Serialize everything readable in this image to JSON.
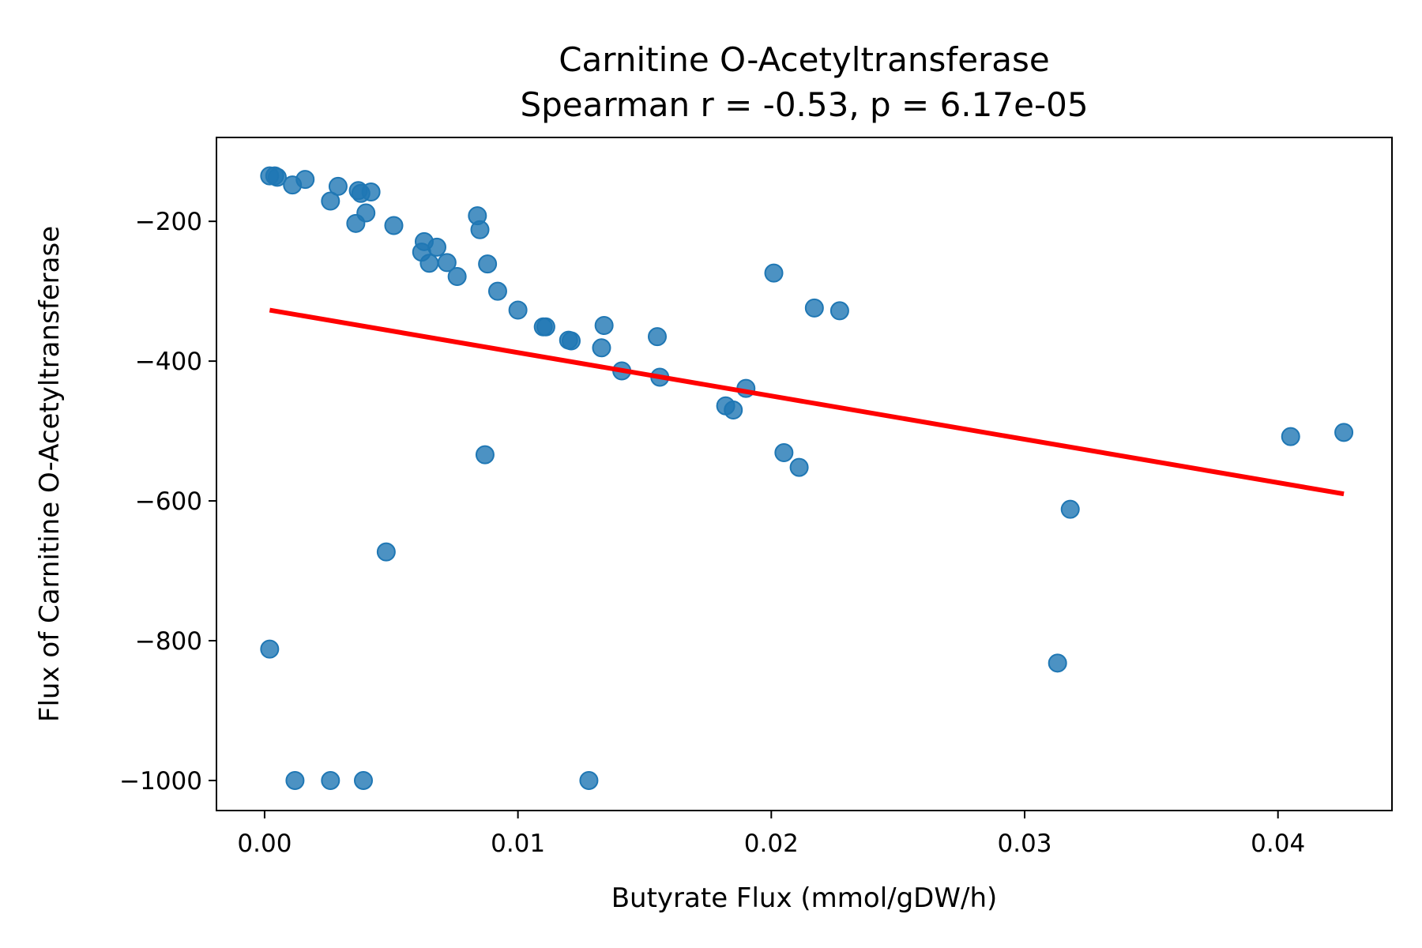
{
  "chart_data": {
    "type": "scatter",
    "title": "Carnitine O-Acetyltransferase",
    "subtitle": "Spearman r = -0.53, p = 6.17e-05",
    "xlabel": "Butyrate Flux (mmol/gDW/h)",
    "ylabel": "Flux of Carnitine O-Acetyltransferase",
    "xlim": [
      -0.0019,
      0.0445
    ],
    "ylim": [
      -1043,
      -80
    ],
    "xticks": [
      0.0,
      0.01,
      0.02,
      0.03,
      0.04
    ],
    "xtick_labels": [
      "0.00",
      "0.01",
      "0.02",
      "0.03",
      "0.04"
    ],
    "yticks": [
      -200,
      -400,
      -600,
      -800,
      -1000
    ],
    "ytick_labels": [
      "−200",
      "−400",
      "−600",
      "−800",
      "−1000"
    ],
    "grid": false,
    "colors": {
      "points": "#1f77b4",
      "fit_line": "#ff0000"
    },
    "points": [
      {
        "x": 0.0002,
        "y": -135
      },
      {
        "x": 0.0004,
        "y": -135
      },
      {
        "x": 0.0005,
        "y": -137
      },
      {
        "x": 0.0011,
        "y": -148
      },
      {
        "x": 0.0016,
        "y": -140
      },
      {
        "x": 0.0026,
        "y": -171
      },
      {
        "x": 0.0029,
        "y": -150
      },
      {
        "x": 0.0037,
        "y": -156
      },
      {
        "x": 0.0038,
        "y": -160
      },
      {
        "x": 0.0042,
        "y": -158
      },
      {
        "x": 0.0036,
        "y": -203
      },
      {
        "x": 0.004,
        "y": -188
      },
      {
        "x": 0.0051,
        "y": -206
      },
      {
        "x": 0.0063,
        "y": -229
      },
      {
        "x": 0.0062,
        "y": -244
      },
      {
        "x": 0.0065,
        "y": -260
      },
      {
        "x": 0.0068,
        "y": -237
      },
      {
        "x": 0.0072,
        "y": -259
      },
      {
        "x": 0.0076,
        "y": -279
      },
      {
        "x": 0.0084,
        "y": -192
      },
      {
        "x": 0.0085,
        "y": -212
      },
      {
        "x": 0.0088,
        "y": -261
      },
      {
        "x": 0.0092,
        "y": -300
      },
      {
        "x": 0.01,
        "y": -327
      },
      {
        "x": 0.011,
        "y": -351
      },
      {
        "x": 0.0111,
        "y": -351
      },
      {
        "x": 0.012,
        "y": -370
      },
      {
        "x": 0.0121,
        "y": -371
      },
      {
        "x": 0.0133,
        "y": -381
      },
      {
        "x": 0.0134,
        "y": -349
      },
      {
        "x": 0.0141,
        "y": -414
      },
      {
        "x": 0.0155,
        "y": -365
      },
      {
        "x": 0.0156,
        "y": -423
      },
      {
        "x": 0.0182,
        "y": -464
      },
      {
        "x": 0.0185,
        "y": -470
      },
      {
        "x": 0.019,
        "y": -439
      },
      {
        "x": 0.0201,
        "y": -274
      },
      {
        "x": 0.0205,
        "y": -531
      },
      {
        "x": 0.0211,
        "y": -552
      },
      {
        "x": 0.0217,
        "y": -324
      },
      {
        "x": 0.0227,
        "y": -328
      },
      {
        "x": 0.0087,
        "y": -534
      },
      {
        "x": 0.0048,
        "y": -673
      },
      {
        "x": 0.0002,
        "y": -812
      },
      {
        "x": 0.0318,
        "y": -612
      },
      {
        "x": 0.0313,
        "y": -832
      },
      {
        "x": 0.0405,
        "y": -508
      },
      {
        "x": 0.0426,
        "y": -502
      },
      {
        "x": 0.0012,
        "y": -1000
      },
      {
        "x": 0.0026,
        "y": -1000
      },
      {
        "x": 0.0039,
        "y": -1000
      },
      {
        "x": 0.0128,
        "y": -1000
      }
    ],
    "fit_line": {
      "x": [
        0.0002,
        0.0426
      ],
      "y": [
        -327,
        -590
      ]
    }
  }
}
